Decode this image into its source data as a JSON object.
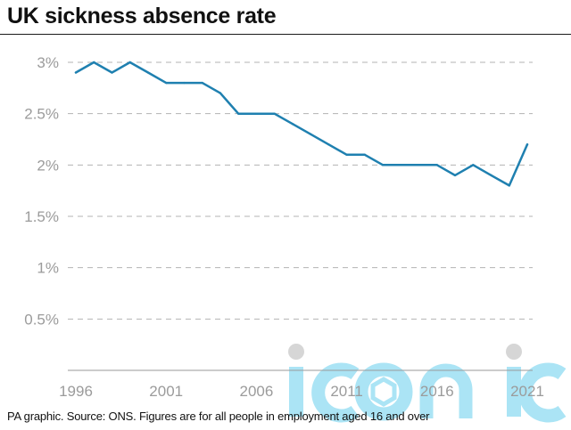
{
  "header": {
    "title": "UK sickness absence rate"
  },
  "footer": {
    "text": "PA graphic. Source: ONS. Figures are for all people in employment aged 16 and over"
  },
  "watermark": {
    "text": "iconic",
    "color": "#8fdcf2"
  },
  "chart_data": {
    "type": "line",
    "title": "UK sickness absence rate",
    "xlabel": "",
    "ylabel": "",
    "x": [
      1996,
      1997,
      1998,
      1999,
      2000,
      2001,
      2002,
      2003,
      2004,
      2005,
      2006,
      2007,
      2008,
      2009,
      2010,
      2011,
      2012,
      2013,
      2014,
      2015,
      2016,
      2017,
      2018,
      2019,
      2020,
      2021
    ],
    "series": [
      {
        "values": [
          2.9,
          3.0,
          2.9,
          3.0,
          2.9,
          2.8,
          2.8,
          2.8,
          2.7,
          2.5,
          2.5,
          2.5,
          2.4,
          2.3,
          2.2,
          2.1,
          2.1,
          2.0,
          2.0,
          2.0,
          2.0,
          1.9,
          2.0,
          1.9,
          1.8,
          2.2
        ],
        "color": "#1f80b0"
      }
    ],
    "xlim": [
      1996,
      2021
    ],
    "ylim": [
      0,
      3
    ],
    "x_ticks": [
      "1996",
      "2001",
      "2006",
      "2011",
      "2016",
      "2021"
    ],
    "y_ticks": [
      "0.5%",
      "1%",
      "1.5%",
      "2%",
      "2.5%",
      "3%"
    ],
    "grid": true,
    "legend": "none"
  }
}
